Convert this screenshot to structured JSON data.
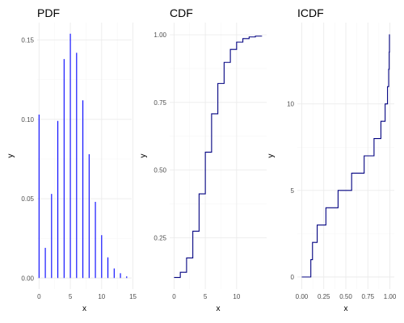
{
  "chart_data": [
    {
      "type": "bar",
      "title": "PDF",
      "xlabel": "x",
      "ylabel": "y",
      "xlim": [
        -0.3,
        14.8
      ],
      "ylim": [
        -0.007,
        0.161
      ],
      "x_ticks": [
        0,
        5,
        10,
        15
      ],
      "x_tick_labels": [
        "0",
        "5",
        "10",
        "15"
      ],
      "y_ticks": [
        0,
        0.05,
        0.1,
        0.15
      ],
      "y_tick_labels": [
        "0.00",
        "0.05",
        "0.10",
        "0.15"
      ],
      "grid": true,
      "color": "#0000ff",
      "x": [
        0,
        1,
        2,
        3,
        4,
        5,
        6,
        7,
        8,
        9,
        10,
        11,
        12,
        13,
        14
      ],
      "values": [
        0.103,
        0.019,
        0.053,
        0.099,
        0.138,
        0.154,
        0.142,
        0.112,
        0.078,
        0.048,
        0.027,
        0.013,
        0.006,
        0.003,
        0.001
      ]
    },
    {
      "type": "line",
      "step": true,
      "title": "CDF",
      "xlabel": "x",
      "ylabel": "y",
      "xlim": [
        -0.7,
        14.8
      ],
      "ylim": [
        0.06,
        1.045
      ],
      "x_ticks": [
        0,
        5,
        10
      ],
      "x_tick_labels": [
        "0",
        "5",
        "10"
      ],
      "y_ticks": [
        0.25,
        0.5,
        0.75,
        1.0
      ],
      "y_tick_labels": [
        "0.25",
        "0.50",
        "0.75",
        "1.00"
      ],
      "grid": true,
      "color": "#000080",
      "x": [
        0,
        1,
        2,
        3,
        4,
        5,
        6,
        7,
        8,
        9,
        10,
        11,
        12,
        13,
        14
      ],
      "values": [
        0.103,
        0.122,
        0.175,
        0.274,
        0.412,
        0.566,
        0.708,
        0.82,
        0.898,
        0.946,
        0.973,
        0.986,
        0.992,
        0.995,
        0.996
      ]
    },
    {
      "type": "line",
      "step": true,
      "title": "ICDF",
      "xlabel": "x",
      "ylabel": "y",
      "xlim": [
        -0.05,
        1.05
      ],
      "ylim": [
        -0.7,
        14.7
      ],
      "x_ticks": [
        0,
        0.25,
        0.5,
        0.75,
        1.0
      ],
      "x_tick_labels": [
        "0.00",
        "0.25",
        "0.50",
        "0.75",
        "1.00"
      ],
      "y_ticks": [
        0,
        5,
        10
      ],
      "y_tick_labels": [
        "0",
        "5",
        "10"
      ],
      "grid": true,
      "color": "#000080",
      "x": [
        0,
        0.103,
        0.122,
        0.175,
        0.274,
        0.412,
        0.566,
        0.708,
        0.82,
        0.898,
        0.946,
        0.973,
        0.986,
        0.992,
        0.995,
        1.0
      ],
      "values": [
        0,
        1,
        2,
        3,
        4,
        5,
        6,
        7,
        8,
        9,
        10,
        11,
        12,
        13,
        14,
        14
      ]
    }
  ]
}
